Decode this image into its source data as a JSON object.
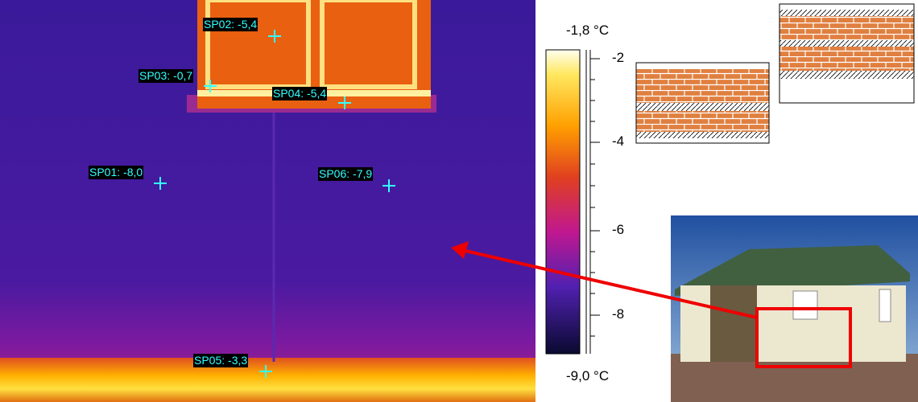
{
  "thermogram": {
    "spots": [
      {
        "label": "SP02: -5,4"
      },
      {
        "label": "SP03: -0,7"
      },
      {
        "label": "SP04: -5,4"
      },
      {
        "label": "SP01: -8,0"
      },
      {
        "label": "SP06: -7,9"
      },
      {
        "label": "SP05: -3,3"
      }
    ]
  },
  "color_scale": {
    "max_label": "-1,8 °C",
    "min_label": "-9,0 °C",
    "ticks": [
      "-2",
      "-4",
      "-6",
      "-8"
    ]
  }
}
